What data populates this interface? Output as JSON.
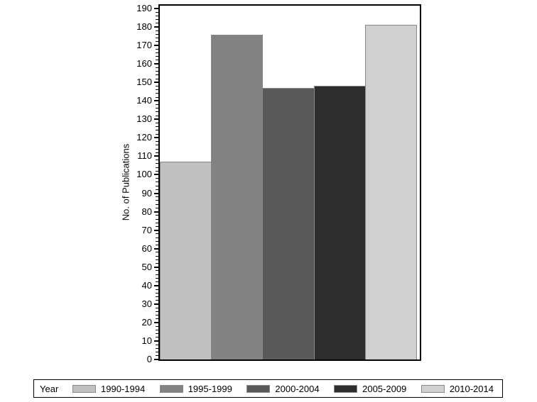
{
  "chart_data": {
    "type": "bar",
    "title": "",
    "categories": [
      "1990-1994",
      "1995-1999",
      "2000-2004",
      "2005-2009",
      "2010-2014"
    ],
    "values": [
      107,
      176,
      147,
      148,
      181
    ],
    "colors": [
      "#c0c0c0",
      "#828282",
      "#595959",
      "#2e2e2e",
      "#d0d0d0"
    ],
    "xlabel": "Year",
    "ylabel": "No. of Publications",
    "ylim": [
      0,
      190
    ],
    "y_major_step": 10,
    "y_minor_step": 2,
    "grid": false,
    "legend_position": "bottom"
  },
  "yaxis": {
    "label": "No. of Publications",
    "ticks": [
      "0",
      "10",
      "20",
      "30",
      "40",
      "50",
      "60",
      "70",
      "80",
      "90",
      "100",
      "110",
      "120",
      "130",
      "140",
      "150",
      "160",
      "170",
      "180",
      "190"
    ]
  },
  "legend": {
    "title": "Year",
    "items": [
      {
        "label": "1990-1994",
        "color": "#c0c0c0"
      },
      {
        "label": "1995-1999",
        "color": "#828282"
      },
      {
        "label": "2000-2004",
        "color": "#595959"
      },
      {
        "label": "2005-2009",
        "color": "#2e2e2e"
      },
      {
        "label": "2010-2014",
        "color": "#d0d0d0"
      }
    ]
  },
  "style_colors": {
    "axis": "#000000",
    "text": "#000000",
    "bar_outline": "#888888",
    "background": "#ffffff"
  }
}
